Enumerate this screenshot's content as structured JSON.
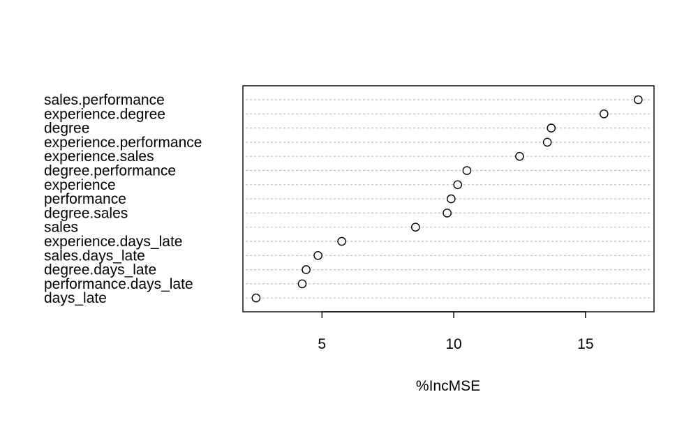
{
  "chart_data": {
    "type": "scatter",
    "subtype": "dotchart",
    "title": "",
    "xlabel": "%IncMSE",
    "ylabel": "",
    "xlim": [
      2.0,
      17.6
    ],
    "x_ticks": [
      5,
      10,
      15
    ],
    "grid": "dotted horizontal lines per category",
    "legend": "none",
    "colors": {
      "axis": "#000000",
      "grid": "#bebebe",
      "point_stroke": "#000000",
      "point_fill": "#ffffff"
    },
    "categories": [
      "sales.performance",
      "experience.degree",
      "degree",
      "experience.performance",
      "experience.sales",
      "degree.performance",
      "experience",
      "performance",
      "degree.sales",
      "sales",
      "experience.days_late",
      "sales.days_late",
      "degree.days_late",
      "performance.days_late",
      "days_late"
    ],
    "values": [
      17.0,
      15.7,
      13.7,
      13.55,
      12.5,
      10.5,
      10.15,
      9.9,
      9.75,
      8.55,
      5.75,
      4.85,
      4.4,
      4.25,
      2.5
    ]
  }
}
